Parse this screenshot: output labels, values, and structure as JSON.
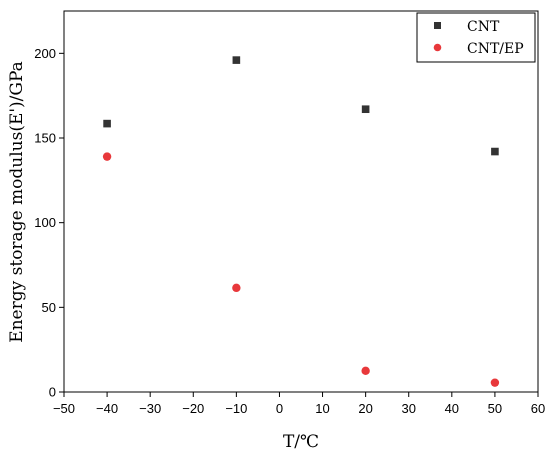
{
  "chart_data": {
    "type": "scatter",
    "title": "",
    "xlabel": "T/℃",
    "ylabel": "Energy storage modulus(E')/GPa",
    "xlim": [
      -50,
      60
    ],
    "ylim": [
      0,
      225
    ],
    "xticks": [
      -50,
      -40,
      -30,
      -20,
      -10,
      0,
      10,
      20,
      30,
      40,
      50,
      60
    ],
    "yticks": [
      0,
      50,
      100,
      150,
      200
    ],
    "grid": false,
    "legend_position": "top-right",
    "series": [
      {
        "name": "CNT",
        "marker": "square",
        "color": "#333333",
        "x": [
          -40,
          -10,
          20,
          50
        ],
        "y": [
          158.5,
          196,
          167,
          142
        ]
      },
      {
        "name": "CNT/EP",
        "marker": "circle",
        "color": "#e8383b",
        "x": [
          -40,
          -10,
          20,
          50
        ],
        "y": [
          139,
          61.5,
          12.5,
          5.5
        ]
      }
    ]
  }
}
